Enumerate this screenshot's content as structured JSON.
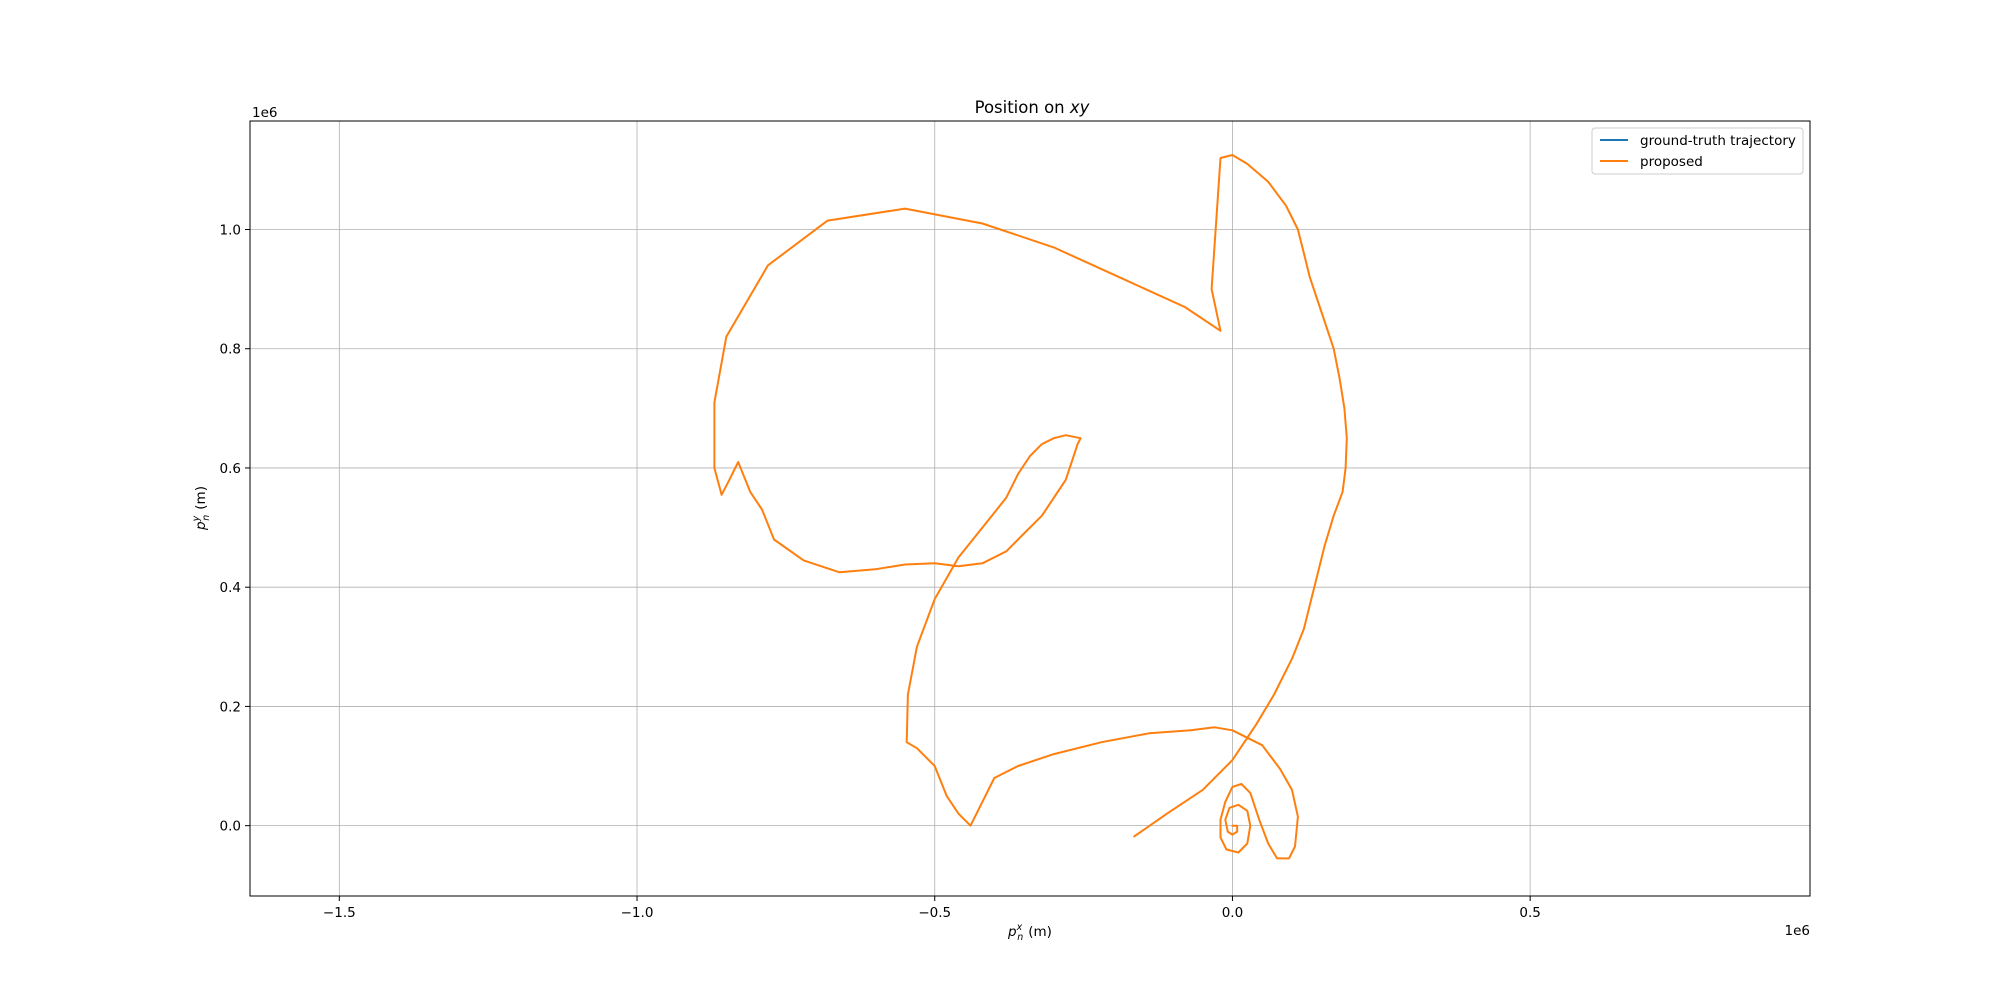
{
  "chart_data": {
    "type": "line",
    "title": "Position on xy",
    "title_parts": {
      "text": "Position on ",
      "math": "xy"
    },
    "xlabel": {
      "symbol": "p",
      "sup": "x",
      "sub": "n",
      "unit": "(m)"
    },
    "ylabel": {
      "symbol": "p",
      "sup": "y",
      "sub": "n",
      "unit": "(m)"
    },
    "x_offset_label": "1e6",
    "y_offset_label": "1e6",
    "xlim": [
      -1.65,
      0.97
    ],
    "ylim": [
      -0.118,
      1.182
    ],
    "xticks": [
      {
        "value": -1.5,
        "label": "−1.5"
      },
      {
        "value": -1.0,
        "label": "−1.0"
      },
      {
        "value": -0.5,
        "label": "−0.5"
      },
      {
        "value": 0.0,
        "label": "0.0"
      },
      {
        "value": 0.5,
        "label": "0.5"
      }
    ],
    "yticks": [
      {
        "value": 0.0,
        "label": "0.0"
      },
      {
        "value": 0.2,
        "label": "0.2"
      },
      {
        "value": 0.4,
        "label": "0.4"
      },
      {
        "value": 0.6,
        "label": "0.6"
      },
      {
        "value": 0.8,
        "label": "0.8"
      },
      {
        "value": 1.0,
        "label": "1.0"
      }
    ],
    "grid": true,
    "legend_position": "top-right",
    "series": [
      {
        "name": "ground-truth trajectory",
        "color": "#1f77b4",
        "x": [
          0.0
        ],
        "y": [
          0.0
        ]
      },
      {
        "name": "proposed",
        "color": "#ff7f0e",
        "x": [
          -0.165,
          -0.11,
          -0.05,
          0.0,
          0.04,
          0.07,
          0.1,
          0.12,
          0.13,
          0.14,
          0.155,
          0.17,
          0.185,
          0.19,
          0.192,
          0.188,
          0.18,
          0.17,
          0.15,
          0.13,
          0.12,
          0.11,
          0.09,
          0.06,
          0.025,
          0.0,
          -0.02,
          -0.035,
          -0.02,
          -0.08,
          -0.19,
          -0.3,
          -0.42,
          -0.55,
          -0.68,
          -0.78,
          -0.85,
          -0.87,
          -0.87,
          -0.858,
          -0.845,
          -0.83,
          -0.81,
          -0.79,
          -0.77,
          -0.72,
          -0.66,
          -0.6,
          -0.55,
          -0.5,
          -0.46,
          -0.42,
          -0.38,
          -0.35,
          -0.32,
          -0.3,
          -0.28,
          -0.27,
          -0.26,
          -0.255,
          -0.28,
          -0.3,
          -0.32,
          -0.34,
          -0.36,
          -0.38,
          -0.42,
          -0.46,
          -0.5,
          -0.53,
          -0.545,
          -0.547,
          -0.53,
          -0.5,
          -0.48,
          -0.46,
          -0.44,
          -0.42,
          -0.4,
          -0.36,
          -0.3,
          -0.22,
          -0.14,
          -0.07,
          -0.03,
          0.0,
          0.05,
          0.08,
          0.1,
          0.11,
          0.105,
          0.095,
          0.075,
          0.06,
          0.045,
          0.03,
          0.015,
          0.0,
          -0.012,
          -0.02,
          -0.02,
          -0.01,
          0.01,
          0.025,
          0.03,
          0.025,
          0.01,
          -0.005,
          -0.012,
          -0.008,
          0.0,
          0.008,
          0.008,
          0.0
        ],
        "y": [
          -0.018,
          0.02,
          0.06,
          0.11,
          0.17,
          0.22,
          0.28,
          0.33,
          0.37,
          0.41,
          0.47,
          0.52,
          0.56,
          0.6,
          0.65,
          0.7,
          0.75,
          0.8,
          0.86,
          0.92,
          0.96,
          1.0,
          1.04,
          1.08,
          1.11,
          1.125,
          1.12,
          0.9,
          0.83,
          0.87,
          0.92,
          0.97,
          1.01,
          1.035,
          1.015,
          0.94,
          0.82,
          0.71,
          0.6,
          0.555,
          0.58,
          0.61,
          0.56,
          0.53,
          0.48,
          0.445,
          0.425,
          0.43,
          0.438,
          0.44,
          0.435,
          0.44,
          0.46,
          0.49,
          0.52,
          0.55,
          0.58,
          0.61,
          0.64,
          0.65,
          0.655,
          0.65,
          0.64,
          0.62,
          0.59,
          0.55,
          0.5,
          0.45,
          0.38,
          0.3,
          0.22,
          0.14,
          0.13,
          0.1,
          0.05,
          0.02,
          0.0,
          0.04,
          0.08,
          0.1,
          0.12,
          0.14,
          0.155,
          0.16,
          0.165,
          0.16,
          0.135,
          0.095,
          0.06,
          0.015,
          -0.035,
          -0.055,
          -0.055,
          -0.03,
          0.01,
          0.055,
          0.07,
          0.065,
          0.04,
          0.01,
          -0.02,
          -0.04,
          -0.045,
          -0.03,
          0.0,
          0.025,
          0.035,
          0.03,
          0.01,
          -0.01,
          -0.015,
          -0.01,
          0.0,
          0.0
        ]
      }
    ]
  }
}
